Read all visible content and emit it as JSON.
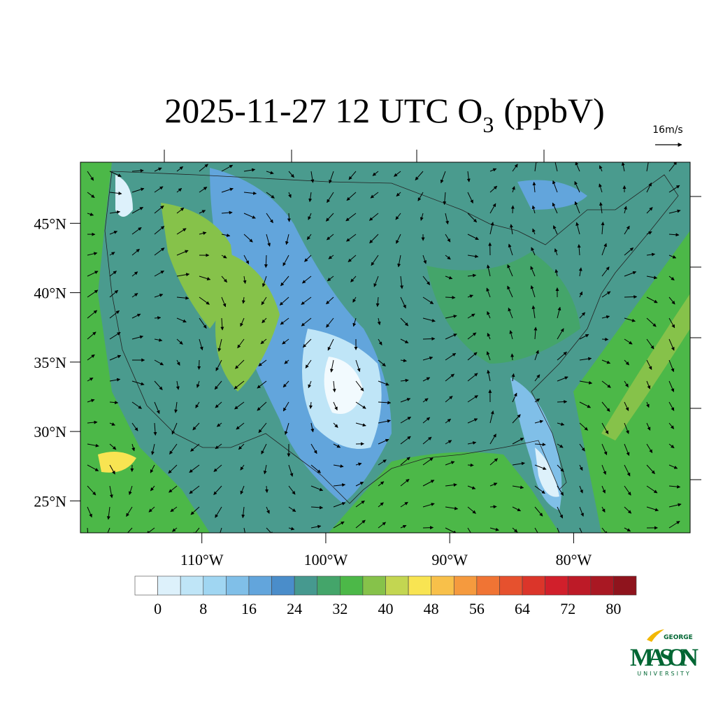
{
  "map": {
    "title": {
      "text": "2025-11-27 12 UTC O",
      "subscript": "3",
      "suffix": "(ppbV)"
    },
    "vector_reference": "16m/s",
    "lat_range": [
      22.7,
      49.4
    ],
    "lon_range": [
      -119.8,
      -70.6
    ],
    "lat_ticks": [
      {
        "value": 45,
        "label": "45°N"
      },
      {
        "value": 40,
        "label": "40°N"
      },
      {
        "value": 35,
        "label": "35°N"
      },
      {
        "value": 30,
        "label": "30°N"
      },
      {
        "value": 25,
        "label": "25°N"
      }
    ],
    "lon_ticks": [
      {
        "value": -110,
        "label": "110°W"
      },
      {
        "value": -100,
        "label": "100°W"
      },
      {
        "value": -90,
        "label": "90°W"
      },
      {
        "value": -80,
        "label": "80°W"
      }
    ],
    "colorbar": {
      "limits": [
        -4,
        84
      ],
      "colors": [
        "#ffffff",
        "#ddf1fb",
        "#bfe5f7",
        "#a0d6f2",
        "#80bfe8",
        "#62a5dc",
        "#4a8dca",
        "#46998f",
        "#44a56a",
        "#4cb848",
        "#86c24a",
        "#c3d651",
        "#f8e452",
        "#f8c04a",
        "#f59a3e",
        "#f07434",
        "#e6512e",
        "#db352a",
        "#d11f2b",
        "#bd1a27",
        "#a91823",
        "#8f141d"
      ],
      "ticks": [
        0,
        8,
        16,
        24,
        32,
        40,
        48,
        56,
        64,
        72,
        80
      ]
    }
  },
  "logo": {
    "top": "GEORGE",
    "main": "MASON",
    "bottom": "UNIVERSITY"
  }
}
